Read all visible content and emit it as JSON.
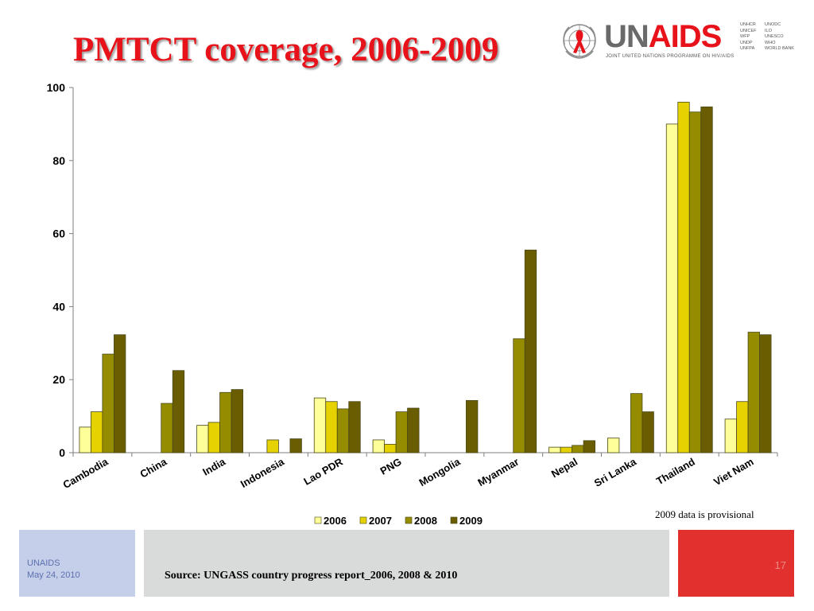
{
  "slide": {
    "title": "PMTCT coverage, 2006-2009",
    "note": "2009 data is provisional",
    "source": "Source: UNGASS country progress report_2006, 2008 & 2010",
    "footer_org": "UNAIDS",
    "footer_date": "May 24, 2010",
    "slide_number": "17"
  },
  "logo": {
    "wordmark_un": "UN",
    "wordmark_aids": "AIDS",
    "tagline": "JOINT UNITED NATIONS PROGRAMME ON HIV/AIDS",
    "cosponsors_col1": [
      "UNHCR",
      "UNICEF",
      "WFP",
      "UNDP",
      "UNFPA"
    ],
    "cosponsors_col2": [
      "UNODC",
      "ILO",
      "UNESCO",
      "WHO",
      "WORLD BANK"
    ],
    "brand_red": "#e8121a",
    "brand_grey": "#6a6a6a"
  },
  "chart_data": {
    "type": "bar",
    "title": "",
    "xlabel": "",
    "ylabel": "",
    "ylim": [
      0,
      100
    ],
    "yticks": [
      0,
      20,
      40,
      60,
      80,
      100
    ],
    "grid": false,
    "legend_position": "bottom",
    "categories": [
      "Cambodia",
      "China",
      "India",
      "Indonesia",
      "Lao PDR",
      "PNG",
      "Mongolia",
      "Myanmar",
      "Nepal",
      "Sri Lanka",
      "Thailand",
      "Viet Nam"
    ],
    "series": [
      {
        "name": "2006",
        "color": "#ffff99",
        "values": [
          7,
          null,
          7.5,
          null,
          15,
          3.5,
          null,
          null,
          1.5,
          4,
          90,
          9.2
        ]
      },
      {
        "name": "2007",
        "color": "#e6d200",
        "values": [
          11.2,
          null,
          8.3,
          3.5,
          14,
          2.3,
          null,
          null,
          1.5,
          null,
          96,
          14
        ]
      },
      {
        "name": "2008",
        "color": "#968c00",
        "values": [
          27,
          13.5,
          16.5,
          null,
          12,
          11.2,
          null,
          31.2,
          2,
          16.2,
          93.3,
          33
        ]
      },
      {
        "name": "2009",
        "color": "#6a5c00",
        "values": [
          32.3,
          22.5,
          17.3,
          3.8,
          14,
          12.2,
          14.3,
          55.5,
          3.3,
          11.2,
          94.7,
          32.3
        ]
      }
    ]
  }
}
